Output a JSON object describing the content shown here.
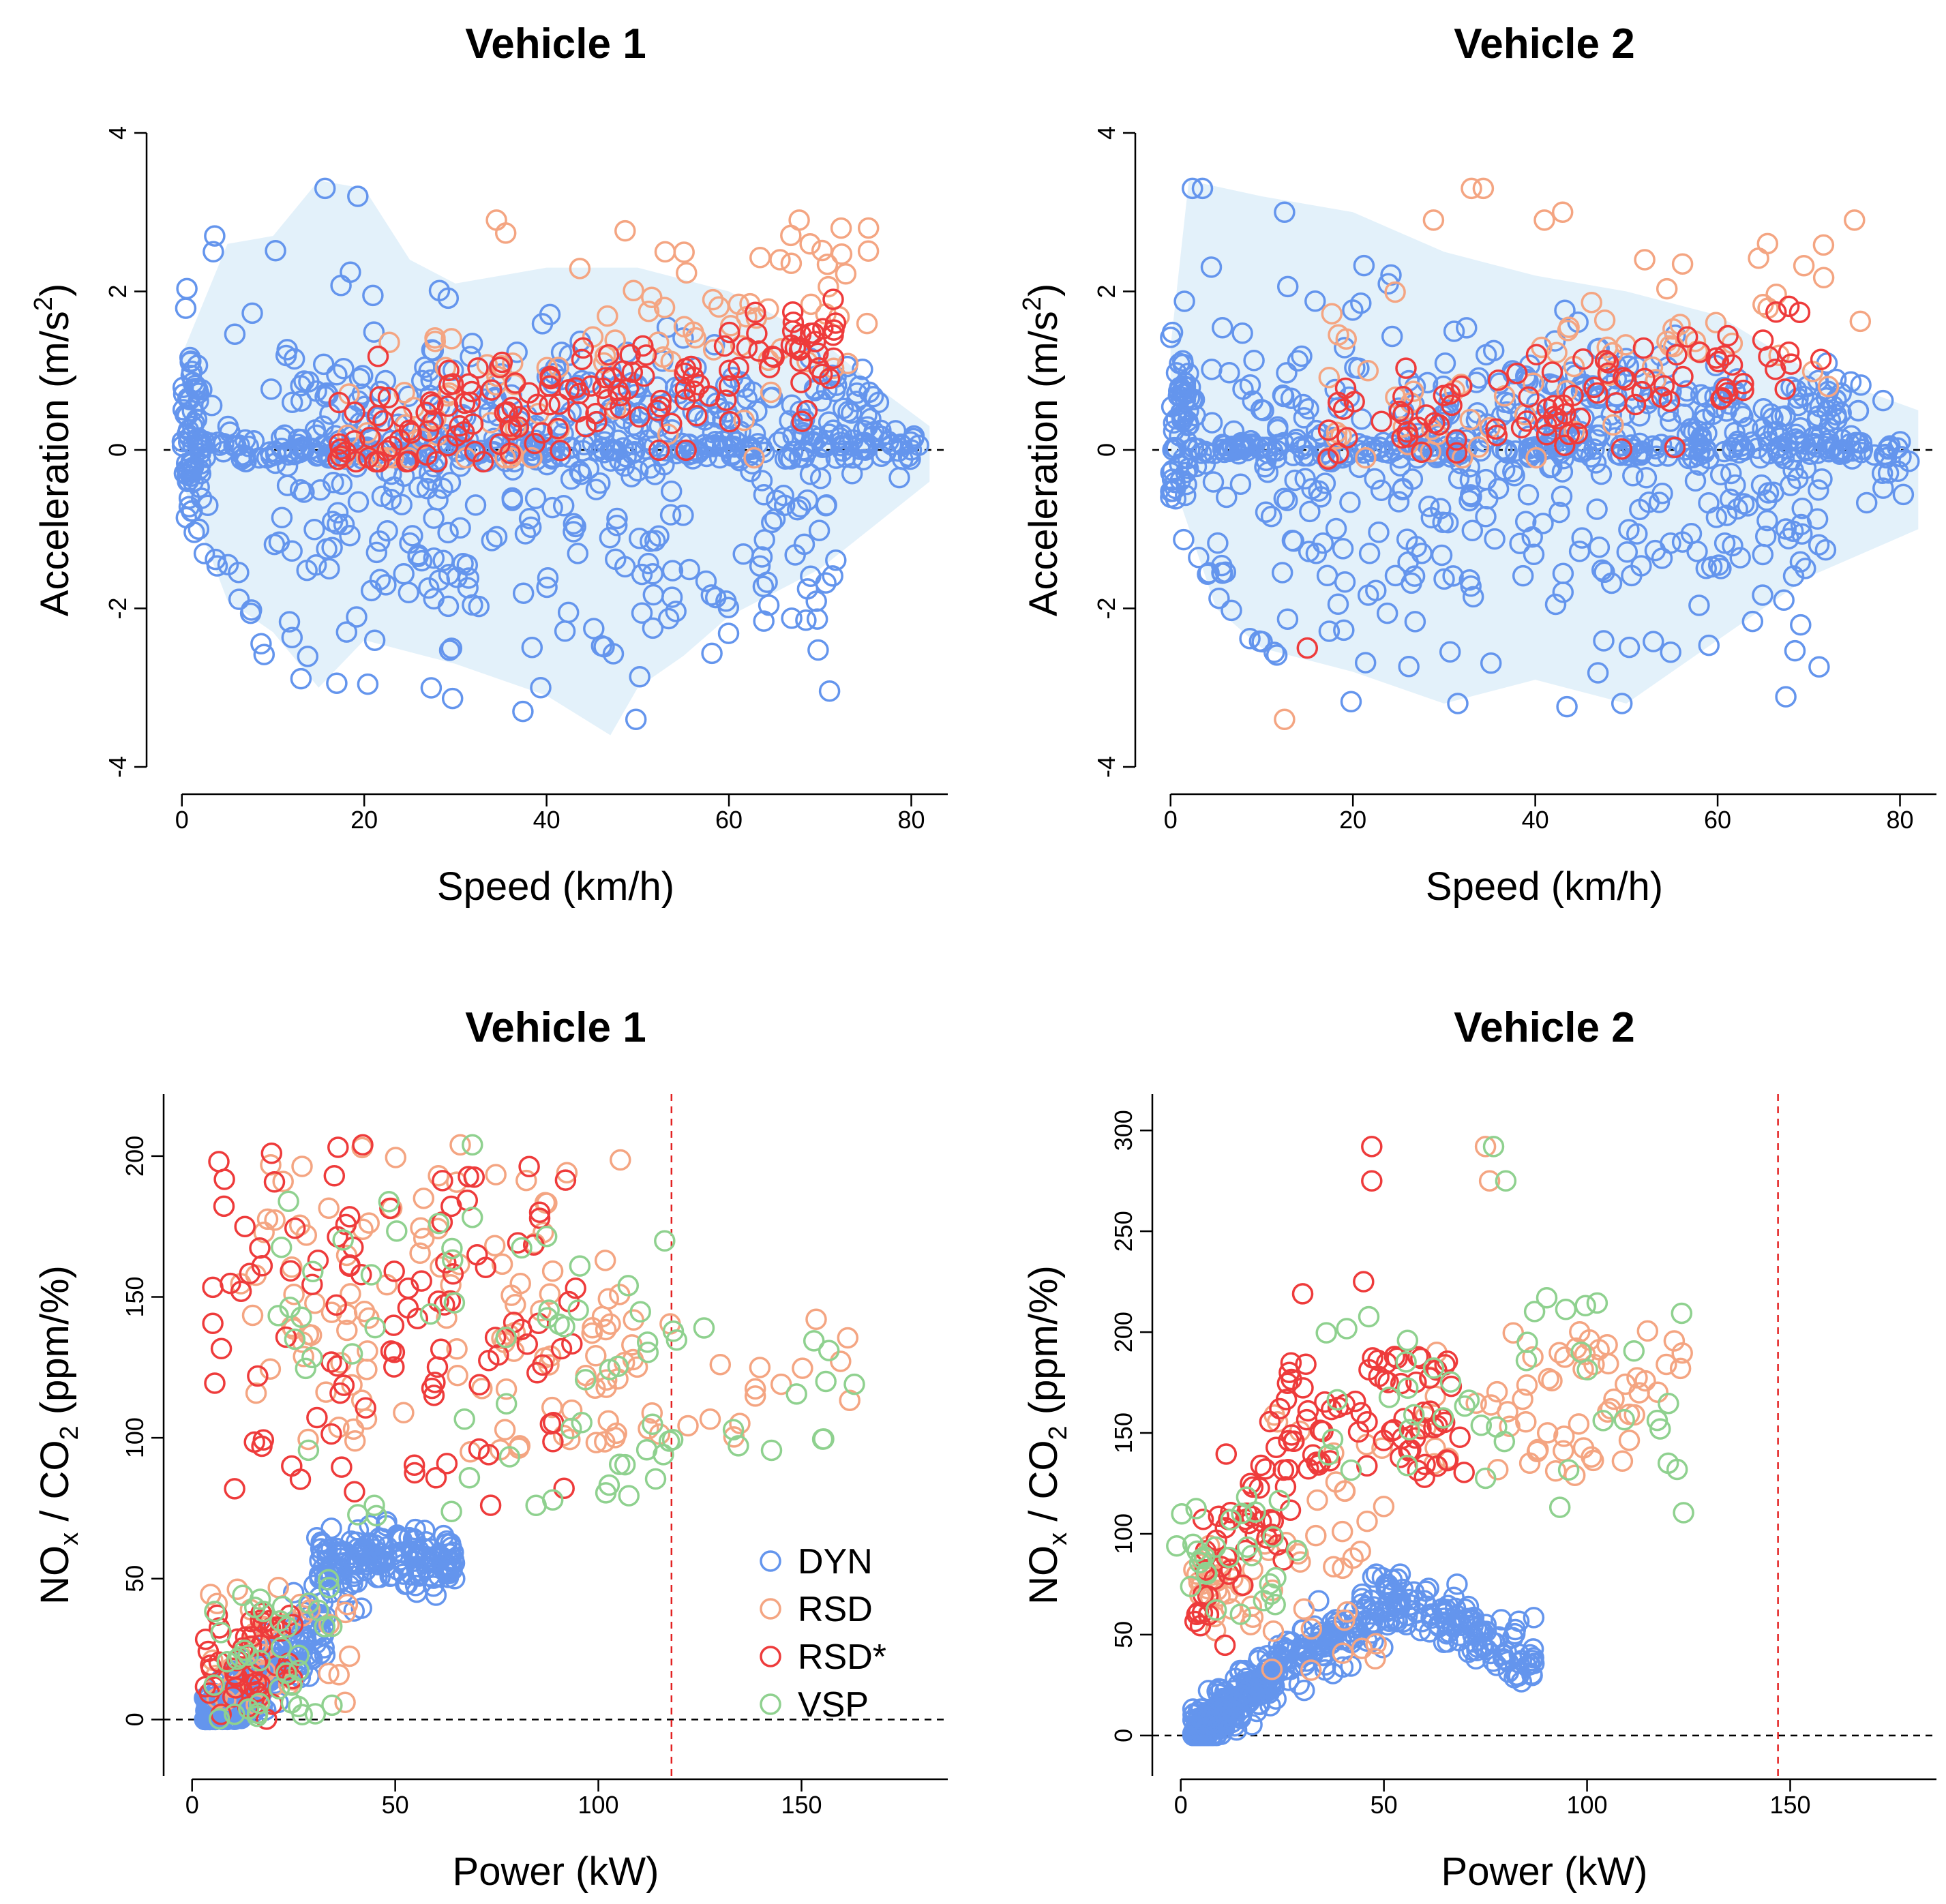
{
  "colors": {
    "DYN": "#6495ED",
    "RSD": "#F4A582",
    "RSD*": "#EE3B3B",
    "VSP": "#8FD18F",
    "band": "#E3F1FA",
    "refline_h": "#000000",
    "refline_v": "#E32222"
  },
  "chart_data": [
    {
      "id": "v1_acc",
      "type": "scatter",
      "title": "Vehicle 1",
      "xlabel": "Speed (km/h)",
      "ylabel_main": "Acceleration (m/s",
      "ylabel_sup": "2",
      "ylabel_end": ")",
      "xlim": [
        -2,
        84
      ],
      "ylim": [
        -4,
        4
      ],
      "xticks": [
        "0",
        "20",
        "40",
        "60",
        "80"
      ],
      "yticks": [
        "-4",
        "-2",
        "0",
        "2",
        "4"
      ],
      "hline": 0,
      "band": {
        "upper": [
          [
            0,
            1.2
          ],
          [
            5,
            2.6
          ],
          [
            10,
            2.7
          ],
          [
            15,
            3.4
          ],
          [
            20,
            3.3
          ],
          [
            25,
            2.4
          ],
          [
            30,
            2.1
          ],
          [
            40,
            2.3
          ],
          [
            50,
            2.3
          ],
          [
            60,
            2.0
          ],
          [
            70,
            1.4
          ],
          [
            75,
            0.9
          ],
          [
            82,
            0.3
          ]
        ],
        "lower": [
          [
            0,
            -0.4
          ],
          [
            5,
            -1.9
          ],
          [
            10,
            -2.3
          ],
          [
            15,
            -3.0
          ],
          [
            20,
            -2.4
          ],
          [
            30,
            -2.7
          ],
          [
            40,
            -3.1
          ],
          [
            47,
            -3.6
          ],
          [
            50,
            -3.0
          ],
          [
            55,
            -2.6
          ],
          [
            60,
            -2.1
          ],
          [
            70,
            -1.5
          ],
          [
            82,
            -0.4
          ]
        ]
      },
      "series": [
        {
          "name": "DYN",
          "color_key": "DYN",
          "n": 720,
          "seed": 11,
          "pattern": "acc_dyn",
          "example_points": [
            [
              15.7,
              3.3
            ],
            [
              19.3,
              3.2
            ],
            [
              3.6,
              2.7
            ],
            [
              37.4,
              -3.3
            ],
            [
              49.8,
              -3.4
            ],
            [
              76.4,
              0.6
            ],
            [
              80.0,
              0.0
            ]
          ]
        },
        {
          "name": "RSD",
          "color_key": "RSD",
          "n": 95,
          "seed": 23,
          "pattern": "acc_rsd",
          "example_points": [
            [
              34.5,
              2.9
            ],
            [
              75.3,
              2.8
            ],
            [
              53.0,
              2.5
            ],
            [
              68.9,
              2.6
            ],
            [
              65.6,
              2.4
            ]
          ]
        },
        {
          "name": "RSD*",
          "color_key": "RSD*",
          "n": 150,
          "seed": 37,
          "pattern": "acc_rsdstar",
          "example_points": [
            [
              67.0,
              1.5
            ],
            [
              71.7,
              1.6
            ],
            [
              46.8,
              1.2
            ],
            [
              36.0,
              0.3
            ]
          ]
        }
      ]
    },
    {
      "id": "v2_acc",
      "type": "scatter",
      "title": "Vehicle 2",
      "xlabel": "Speed (km/h)",
      "ylabel_main": "Acceleration (m/s",
      "ylabel_sup": "2",
      "ylabel_end": ")",
      "xlim": [
        -2,
        84
      ],
      "ylim": [
        -4,
        4
      ],
      "xticks": [
        "0",
        "20",
        "40",
        "60",
        "80"
      ],
      "yticks": [
        "-4",
        "-2",
        "0",
        "2",
        "4"
      ],
      "hline": 0,
      "band": {
        "upper": [
          [
            0,
            1.3
          ],
          [
            2,
            3.4
          ],
          [
            10,
            3.2
          ],
          [
            20,
            3.0
          ],
          [
            30,
            2.5
          ],
          [
            40,
            2.2
          ],
          [
            50,
            2.0
          ],
          [
            60,
            1.7
          ],
          [
            70,
            1.0
          ],
          [
            82,
            0.5
          ]
        ],
        "lower": [
          [
            0,
            -0.3
          ],
          [
            5,
            -2.0
          ],
          [
            10,
            -2.5
          ],
          [
            20,
            -2.8
          ],
          [
            30,
            -3.2
          ],
          [
            40,
            -2.9
          ],
          [
            50,
            -3.2
          ],
          [
            60,
            -2.4
          ],
          [
            70,
            -1.6
          ],
          [
            82,
            -1.0
          ]
        ]
      },
      "series": [
        {
          "name": "DYN",
          "color_key": "DYN",
          "n": 720,
          "seed": 51,
          "pattern": "acc_dyn",
          "example_points": [
            [
              2.4,
              3.3
            ],
            [
              3.5,
              3.3
            ],
            [
              12.5,
              3.0
            ],
            [
              49.5,
              -3.2
            ],
            [
              31.5,
              -3.2
            ],
            [
              78.5,
              -0.1
            ]
          ]
        },
        {
          "name": "RSD",
          "color_key": "RSD",
          "n": 70,
          "seed": 63,
          "pattern": "acc_rsd",
          "example_points": [
            [
              33.0,
              3.3
            ],
            [
              34.3,
              3.3
            ],
            [
              41.0,
              2.9
            ],
            [
              43.0,
              3.0
            ],
            [
              52.0,
              2.4
            ],
            [
              12.5,
              -3.4
            ]
          ]
        },
        {
          "name": "RSD*",
          "color_key": "RSD*",
          "n": 90,
          "seed": 77,
          "pattern": "acc_rsdstar",
          "example_points": [
            [
              15.0,
              -2.5
            ],
            [
              48.0,
              1.1
            ],
            [
              55.5,
              1.2
            ]
          ]
        }
      ]
    },
    {
      "id": "v1_nox",
      "type": "scatter",
      "title": "Vehicle 1",
      "xlabel": "Power (kW)",
      "ylabel_main": "NO",
      "ylabel_sub1": "x",
      "ylabel_mid": " / CO",
      "ylabel_sub2": "2",
      "ylabel_end": " (ppm/%)",
      "xlim": [
        -7,
        186
      ],
      "ylim": [
        -20,
        222
      ],
      "xticks": [
        "0",
        "50",
        "100",
        "150"
      ],
      "yticks": [
        "0",
        "50",
        "100",
        "150",
        "200"
      ],
      "hline": 0,
      "vline": 118,
      "legend": [
        "DYN",
        "RSD",
        "RSD*",
        "VSP"
      ],
      "series": [
        {
          "name": "DYN",
          "color_key": "DYN",
          "n": 420,
          "seed": 101,
          "pattern": "nox1_dyn",
          "example_points": [
            [
              4,
              0
            ],
            [
              10,
              10
            ],
            [
              25,
              45
            ],
            [
              45,
              62
            ],
            [
              60,
              58
            ],
            [
              64,
              53
            ]
          ]
        },
        {
          "name": "RSD",
          "color_key": "RSD",
          "n": 170,
          "seed": 113,
          "pattern": "nox1_rsd",
          "example_points": [
            [
              66,
              204
            ],
            [
              57,
              185
            ],
            [
              101,
              143
            ],
            [
              145,
              119
            ],
            [
              130,
              126
            ]
          ]
        },
        {
          "name": "RSD*",
          "color_key": "RSD*",
          "n": 150,
          "seed": 127,
          "pattern": "nox1_rsdstar",
          "example_points": [
            [
              42,
              204
            ],
            [
              35,
              193
            ],
            [
              13,
              175
            ],
            [
              31,
              163
            ],
            [
              73,
              94
            ]
          ]
        },
        {
          "name": "VSP",
          "color_key": "VSP",
          "n": 110,
          "seed": 131,
          "pattern": "nox1_vsp",
          "example_points": [
            [
              69,
              204
            ],
            [
              163,
              119
            ],
            [
              156,
              120
            ],
            [
              126,
              139
            ],
            [
              116,
              94
            ]
          ]
        }
      ]
    },
    {
      "id": "v2_nox",
      "type": "scatter",
      "title": "Vehicle 2",
      "xlabel": "Power (kW)",
      "ylabel_main": "NO",
      "ylabel_sub1": "x",
      "ylabel_mid": " / CO",
      "ylabel_sub2": "2",
      "ylabel_end": " (ppm/%)",
      "xlim": [
        -7,
        186
      ],
      "ylim": [
        -20,
        318
      ],
      "xticks": [
        "0",
        "50",
        "100",
        "150"
      ],
      "yticks": [
        "0",
        "50",
        "100",
        "150",
        "200",
        "250",
        "300"
      ],
      "hline": 0,
      "vline": 147,
      "series": [
        {
          "name": "DYN",
          "color_key": "DYN",
          "n": 460,
          "seed": 201,
          "pattern": "nox2_dyn",
          "example_points": [
            [
              4,
              0
            ],
            [
              15,
              20
            ],
            [
              30,
              45
            ],
            [
              52,
              70
            ],
            [
              68,
              75
            ],
            [
              86,
              40
            ]
          ]
        },
        {
          "name": "RSD",
          "color_key": "RSD",
          "n": 120,
          "seed": 213,
          "pattern": "nox2_rsd",
          "example_points": [
            [
              75,
              292
            ],
            [
              76,
              275
            ],
            [
              123,
              182
            ],
            [
              97,
              129
            ],
            [
              4,
              80
            ]
          ]
        },
        {
          "name": "RSD*",
          "color_key": "RSD*",
          "n": 120,
          "seed": 227,
          "pattern": "nox2_rsdstar",
          "example_points": [
            [
              47,
              292
            ],
            [
              47,
              275
            ],
            [
              30,
              219
            ],
            [
              45,
              225
            ],
            [
              60,
              128
            ]
          ]
        },
        {
          "name": "VSP",
          "color_key": "VSP",
          "n": 70,
          "seed": 231,
          "pattern": "nox2_vsp",
          "example_points": [
            [
              77,
              292
            ],
            [
              80,
              275
            ],
            [
              -1,
              94
            ],
            [
              120,
              135
            ],
            [
              118,
              152
            ]
          ]
        }
      ]
    }
  ]
}
